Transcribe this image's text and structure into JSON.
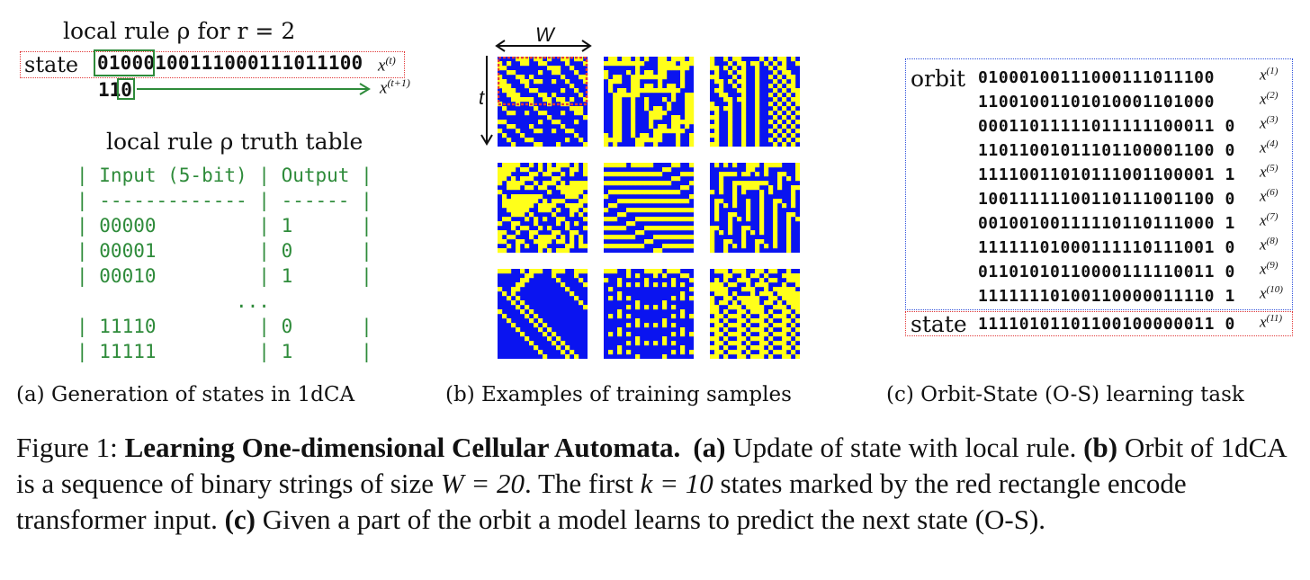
{
  "panel_a": {
    "title": "local rule ρ for r = 2",
    "state_label": "state",
    "state_bits": "01000100111000111011100",
    "state_var": "x",
    "state_sup": "(t)",
    "output_bits": "110",
    "output_var": "x",
    "output_sup": "(t+1)",
    "truth_table_title": "local rule ρ truth table",
    "truth_table_rows": [
      "| Input (5-bit) | Output |",
      "| ------------- | ------ |",
      "| 00000         | 1      |",
      "| 00001         | 0      |",
      "| 00010         | 1      |",
      "              ...",
      "| 11110         | 0      |",
      "| 11111         | 1      |"
    ],
    "caption": "(a) Generation of states in 1dCA"
  },
  "panel_b": {
    "w_label": "W",
    "t_label": "t",
    "caption": "(b) Examples of training samples",
    "colors": {
      "on": "#ffff1a",
      "off": "#0a14f0",
      "highlight": "#e23b3b"
    }
  },
  "panel_c": {
    "orbit_label": "orbit",
    "state_label": "state",
    "orbit_rows": [
      {
        "bits": "01000100111000111011100",
        "sup": "(1)"
      },
      {
        "bits": "11001001101010001101000",
        "sup": "(2)"
      },
      {
        "bits": "00011011111011111100011 0",
        "sup": "(3)"
      },
      {
        "bits": "11011001011101100001100 0",
        "sup": "(4)"
      },
      {
        "bits": "11110011010111001100001 1",
        "sup": "(5)"
      },
      {
        "bits": "10011111100110111001100 0",
        "sup": "(6)"
      },
      {
        "bits": "00100100111110110111000 1",
        "sup": "(7)"
      },
      {
        "bits": "11111101000111110111001 0",
        "sup": "(8)"
      },
      {
        "bits": "01101010110000111110011 0",
        "sup": "(9)"
      },
      {
        "bits": "11111110100110000011110 1",
        "sup": "(10)"
      }
    ],
    "state_bits": "11110101101100100000011 0",
    "state_sup": "(11)",
    "var": "x",
    "caption": "(c) Orbit-State (O-S) learning task"
  },
  "figure_caption": {
    "prefix": "Figure 1: ",
    "title": "Learning One-dimensional Cellular Automata.",
    "a_tag": "(a)",
    "a_text": " Update of state with local rule. ",
    "b_tag": "(b)",
    "b_text_1": "  Orbit of 1dCA is a sequence of binary strings of size ",
    "b_math_1": "W = 20",
    "b_text_2": ". The first ",
    "b_math_2": "k = 10",
    "b_text_3": " states marked by the red rectangle encode transformer input. ",
    "c_tag": "(c)",
    "c_text": " Given a part of the orbit a model learns to predict the next state (O-S)."
  }
}
